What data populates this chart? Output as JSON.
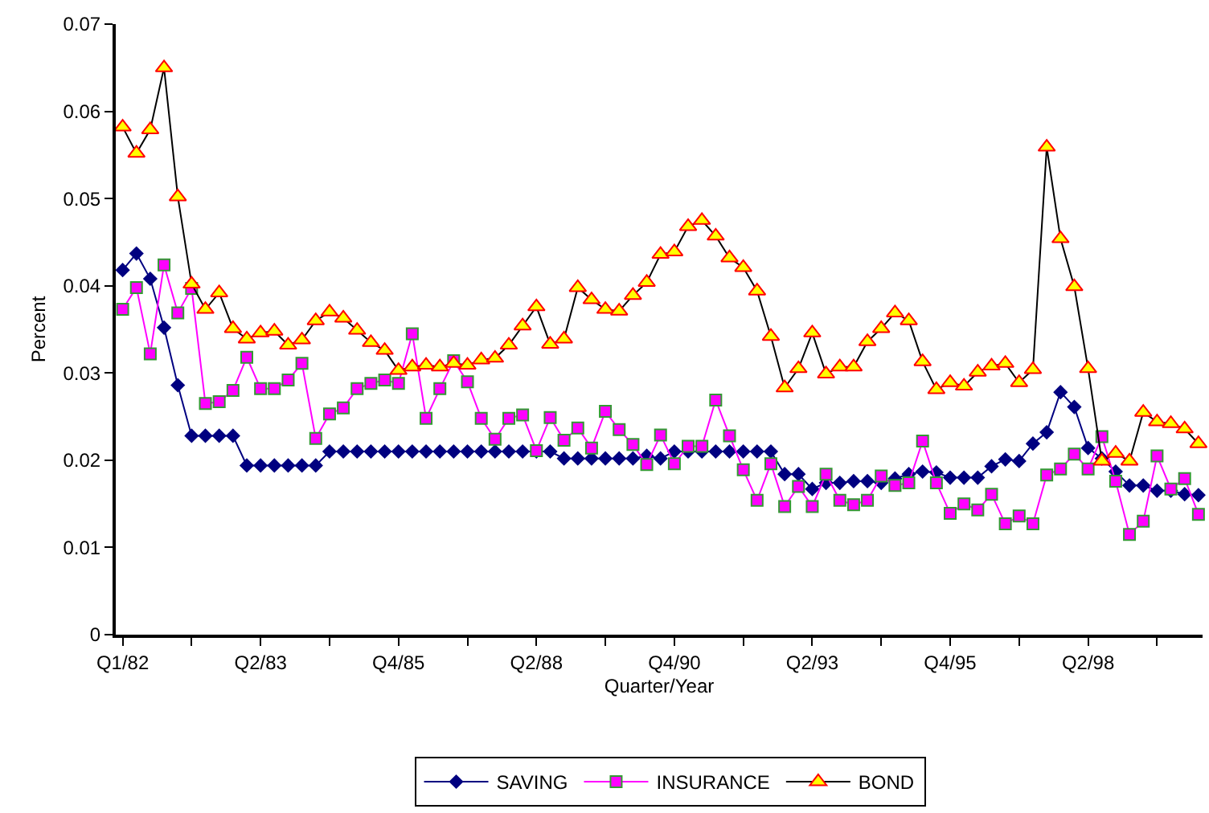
{
  "chart_data": {
    "type": "line",
    "xlabel": "Quarter/Year",
    "ylabel": "Percent",
    "categories": [
      "Q1/82",
      null,
      null,
      null,
      null,
      null,
      null,
      null,
      null,
      null,
      "Q2/83",
      null,
      null,
      null,
      null,
      null,
      null,
      null,
      null,
      null,
      "Q4/85",
      null,
      null,
      null,
      null,
      null,
      null,
      null,
      null,
      null,
      "Q2/88",
      null,
      null,
      null,
      null,
      null,
      null,
      null,
      null,
      null,
      "Q4/90",
      null,
      null,
      null,
      null,
      null,
      null,
      null,
      null,
      null,
      "Q2/93",
      null,
      null,
      null,
      null,
      null,
      null,
      null,
      null,
      null,
      "Q4/95",
      null,
      null,
      null,
      null,
      null,
      null,
      null,
      null,
      null,
      "Q2/98",
      null,
      null,
      null,
      null,
      null,
      null,
      null,
      null
    ],
    "series": [
      {
        "name": "SAVING",
        "color": "#000080",
        "marker": "diamond",
        "values": [
          0.0418,
          0.0437,
          0.0408,
          0.0352,
          0.0286,
          0.0228,
          0.0228,
          0.0228,
          0.0228,
          0.0194,
          0.0194,
          0.0194,
          0.0194,
          0.0194,
          0.0194,
          0.021,
          0.021,
          0.021,
          0.021,
          0.021,
          0.021,
          0.021,
          0.021,
          0.021,
          0.021,
          0.021,
          0.021,
          0.021,
          0.021,
          0.021,
          0.021,
          0.021,
          0.0202,
          0.0202,
          0.0202,
          0.0202,
          0.0202,
          0.0202,
          0.0205,
          0.0202,
          0.021,
          0.021,
          0.021,
          0.021,
          0.021,
          0.021,
          0.021,
          0.021,
          0.0184,
          0.0184,
          0.0167,
          0.0174,
          0.0174,
          0.0176,
          0.0176,
          0.0174,
          0.0179,
          0.0184,
          0.0187,
          0.0186,
          0.018,
          0.018,
          0.018,
          0.0193,
          0.0201,
          0.0199,
          0.0219,
          0.0232,
          0.0278,
          0.0261,
          0.0214,
          0.0202,
          0.0187,
          0.0171,
          0.0171,
          0.0165,
          0.0165,
          0.0161,
          0.016
        ]
      },
      {
        "name": "INSURANCE",
        "color": "#ff00ff",
        "marker": "square",
        "values": [
          0.0373,
          0.0398,
          0.0322,
          0.0424,
          0.0369,
          0.0397,
          0.0265,
          0.0267,
          0.028,
          0.0318,
          0.0282,
          0.0282,
          0.0292,
          0.0311,
          0.0225,
          0.0253,
          0.026,
          0.0282,
          0.0288,
          0.0292,
          0.0288,
          0.0345,
          0.0248,
          0.0282,
          0.0314,
          0.029,
          0.0248,
          0.0224,
          0.0248,
          0.0252,
          0.0211,
          0.0249,
          0.0223,
          0.0237,
          0.0214,
          0.0256,
          0.0235,
          0.0218,
          0.0195,
          0.0229,
          0.0196,
          0.0216,
          0.0216,
          0.0269,
          0.0228,
          0.0189,
          0.0154,
          0.0196,
          0.0147,
          0.017,
          0.0147,
          0.0184,
          0.0154,
          0.0149,
          0.0154,
          0.0182,
          0.0171,
          0.0174,
          0.0222,
          0.0174,
          0.0139,
          0.015,
          0.0143,
          0.0161,
          0.0127,
          0.0136,
          0.0127,
          0.0183,
          0.019,
          0.0207,
          0.019,
          0.0227,
          0.0176,
          0.0115,
          0.013,
          0.0205,
          0.0167,
          0.0179,
          0.0138
        ]
      },
      {
        "name": "BOND",
        "color": "#ffff00",
        "marker": "triangle",
        "values": [
          0.0582,
          0.0552,
          0.0579,
          0.065,
          0.0502,
          0.0402,
          0.0373,
          0.0392,
          0.0351,
          0.0339,
          0.0346,
          0.0348,
          0.0332,
          0.0338,
          0.036,
          0.037,
          0.0363,
          0.0349,
          0.0335,
          0.0326,
          0.0303,
          0.0307,
          0.0309,
          0.0307,
          0.0311,
          0.0309,
          0.0315,
          0.0317,
          0.0332,
          0.0354,
          0.0376,
          0.0333,
          0.0339,
          0.0398,
          0.0384,
          0.0373,
          0.0371,
          0.0389,
          0.0404,
          0.0436,
          0.0439,
          0.0468,
          0.0475,
          0.0457,
          0.0432,
          0.0421,
          0.0394,
          0.0342,
          0.0283,
          0.0305,
          0.0346,
          0.0299,
          0.0307,
          0.0307,
          0.0336,
          0.0351,
          0.0369,
          0.036,
          0.0313,
          0.0281,
          0.0289,
          0.0285,
          0.0301,
          0.0308,
          0.0311,
          0.0289,
          0.0304,
          0.0559,
          0.0454,
          0.0399,
          0.0305,
          0.0199,
          0.0208,
          0.0199,
          0.0255,
          0.0244,
          0.0242,
          0.0236,
          0.0219
        ]
      }
    ],
    "ylim": [
      0,
      0.07
    ],
    "yticks": [
      0,
      0.01,
      0.02,
      0.03,
      0.04,
      0.05,
      0.06,
      0.07
    ],
    "grid": false,
    "legend": "bottom"
  }
}
